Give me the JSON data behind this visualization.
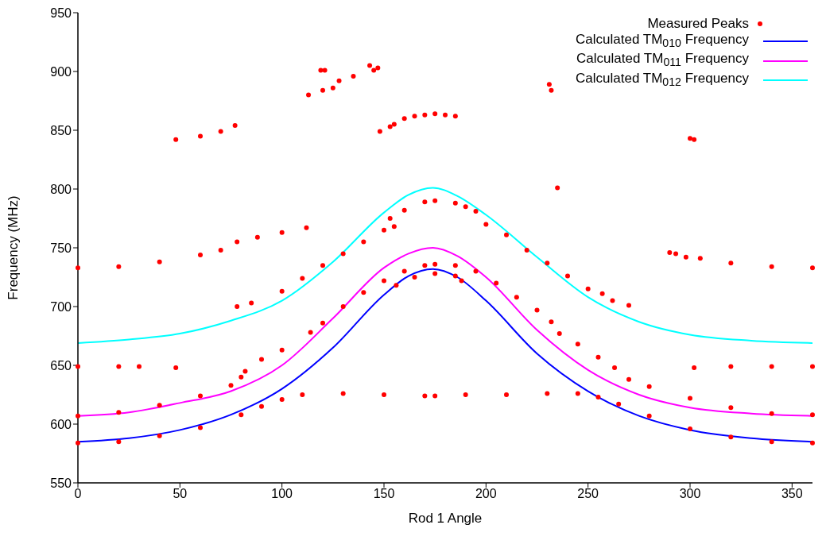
{
  "chart_data": {
    "type": "scatter",
    "xlabel": "Rod 1 Angle",
    "ylabel": "Frequency (MHz)",
    "xlim": [
      0,
      360
    ],
    "xticks": [
      0,
      50,
      100,
      150,
      200,
      250,
      300,
      350
    ],
    "ylim": [
      550,
      950
    ],
    "yticks": [
      550,
      600,
      650,
      700,
      750,
      800,
      850,
      900,
      950
    ],
    "grid": false,
    "legend": "top right",
    "series": [
      {
        "name": "Measured Peaks",
        "marker": "circle",
        "color": "#ff0000",
        "x": [
          0,
          20,
          40,
          60,
          80,
          90,
          100,
          110,
          130,
          150,
          170,
          175,
          190,
          210,
          230,
          245,
          255,
          265,
          280,
          300,
          320,
          340,
          360,
          0,
          20,
          40,
          60,
          75,
          80,
          82,
          90,
          100,
          114,
          120,
          130,
          140,
          150,
          160,
          170,
          175,
          185,
          195,
          205,
          215,
          225,
          232,
          236,
          245,
          255,
          263,
          270,
          280,
          300,
          320,
          340,
          360,
          156,
          165,
          175,
          185,
          188,
          0,
          20,
          40,
          60,
          70,
          78,
          88,
          100,
          112,
          78,
          85,
          100,
          110,
          120,
          130,
          140,
          150,
          155,
          153,
          160,
          170,
          175,
          185,
          190,
          195,
          200,
          210,
          220,
          230,
          240,
          250,
          257,
          262,
          270,
          290,
          293,
          298,
          305,
          320,
          340,
          360,
          0,
          20,
          30,
          48,
          302,
          320,
          340,
          360,
          48,
          60,
          70,
          77,
          113,
          120,
          125,
          128,
          135,
          143,
          145,
          147,
          119,
          121,
          148,
          153,
          155,
          160,
          165,
          170,
          175,
          180,
          185,
          231,
          232,
          235,
          300,
          302
        ],
        "values": [
          584,
          585,
          590,
          597,
          608,
          615,
          621,
          625,
          626,
          625,
          624,
          624,
          625,
          625,
          626,
          626,
          623,
          617,
          607,
          596,
          589,
          585,
          584,
          607,
          610,
          616,
          624,
          633,
          640,
          645,
          655,
          663,
          678,
          686,
          700,
          712,
          722,
          730,
          735,
          736,
          735,
          730,
          720,
          708,
          697,
          687,
          677,
          668,
          657,
          648,
          638,
          632,
          622,
          614,
          609,
          608,
          718,
          725,
          728,
          726,
          722,
          733,
          734,
          738,
          744,
          748,
          755,
          759,
          763,
          767,
          700,
          703,
          713,
          724,
          735,
          745,
          755,
          765,
          768,
          775,
          782,
          789,
          790,
          788,
          785,
          781,
          770,
          761,
          748,
          737,
          726,
          715,
          711,
          705,
          701,
          746,
          745,
          742,
          741,
          737,
          734,
          733,
          649,
          649,
          649,
          648,
          648,
          649,
          649,
          649,
          842,
          845,
          849,
          854,
          880,
          884,
          886,
          892,
          896,
          905,
          901,
          903,
          901,
          901,
          849,
          853,
          855,
          860,
          862,
          863,
          864,
          863,
          862,
          889,
          884,
          801,
          843,
          842
        ]
      },
      {
        "name": "Calculated TM$_{010}$ Frequency",
        "type": "line",
        "marker": "none",
        "color": "#0000ff",
        "x": [
          0,
          25,
          50,
          75,
          100,
          125,
          150,
          162,
          174,
          186,
          200,
          225,
          250,
          275,
          300,
          330,
          360
        ],
        "values": [
          585,
          588,
          595,
          608,
          630,
          665,
          710,
          726,
          732,
          725,
          705,
          660,
          628,
          607,
          595,
          588,
          585
        ]
      },
      {
        "name": "Calculated TM$_{011}$ Frequency",
        "type": "line",
        "marker": "none",
        "color": "#ff00ff",
        "x": [
          0,
          25,
          50,
          75,
          100,
          125,
          150,
          162,
          174,
          186,
          200,
          225,
          250,
          275,
          300,
          330,
          360
        ],
        "values": [
          607,
          610,
          618,
          628,
          650,
          690,
          733,
          745,
          750,
          743,
          725,
          680,
          646,
          625,
          614,
          609,
          607
        ]
      },
      {
        "name": "Calculated TM$_{012}$ Frequency",
        "type": "line",
        "marker": "none",
        "color": "#00ffff",
        "x": [
          0,
          25,
          50,
          75,
          100,
          125,
          150,
          162,
          174,
          186,
          200,
          225,
          250,
          275,
          300,
          330,
          360
        ],
        "values": [
          669,
          672,
          677,
          688,
          705,
          738,
          780,
          795,
          801,
          794,
          778,
          742,
          708,
          687,
          676,
          671,
          669
        ]
      }
    ]
  }
}
